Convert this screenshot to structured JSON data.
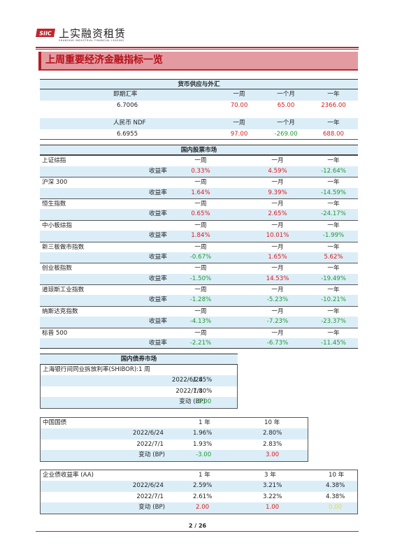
{
  "brand": {
    "name_cn": "上实融资租赁",
    "name_en": "SHANGHAI INDUSTRIAL FINANCIAL LEASING",
    "logo_text": "SIIC",
    "accent": "#c0262d"
  },
  "title": "上周重要经济金融指标一览",
  "fx": {
    "section": "货币供应与外汇",
    "periods": [
      "一周",
      "一个月",
      "一年"
    ],
    "rows": [
      {
        "name": "即期汇率",
        "value": "6.7006",
        "changes": [
          "70.00",
          "65.00",
          "2366.00"
        ]
      },
      {
        "name": "人民币 NDF",
        "value": "6.6955",
        "changes": [
          "97.00",
          "-269.00",
          "688.00"
        ]
      }
    ]
  },
  "stocks": {
    "section": "国内股票市场",
    "periods": [
      "一周",
      "一月",
      "一年"
    ],
    "yield_label": "收益率",
    "rows": [
      {
        "name": "上证综指",
        "values": [
          "0.33%",
          "4.59%",
          "-12.64%"
        ]
      },
      {
        "name": "沪深 300",
        "values": [
          "1.64%",
          "9.39%",
          "-14.59%"
        ]
      },
      {
        "name": "恒生指数",
        "values": [
          "0.65%",
          "2.65%",
          "-24.17%"
        ]
      },
      {
        "name": "中小板综指",
        "values": [
          "1.84%",
          "10.01%",
          "-1.99%"
        ]
      },
      {
        "name": "新三板做市指数",
        "values": [
          "-0.67%",
          "1.65%",
          "5.62%"
        ]
      },
      {
        "name": "创业板指数",
        "values": [
          "-1.50%",
          "14.53%",
          "-19.49%"
        ]
      },
      {
        "name": "道琼斯工业指数",
        "values": [
          "-1.28%",
          "-5.23%",
          "-10.21%"
        ]
      },
      {
        "name": "纳斯达克指数",
        "values": [
          "-4.13%",
          "-7.23%",
          "-23.37%"
        ]
      },
      {
        "name": "标普 500",
        "values": [
          "-2.21%",
          "-6.73%",
          "-11.45%"
        ]
      }
    ]
  },
  "bonds": {
    "section": "国内债券市场",
    "shibor": {
      "title": "上海银行间同业拆放利率(SHIBOR):1 周",
      "rows": [
        {
          "date": "2022/6/24",
          "value": "1.85%"
        },
        {
          "date": "2022/7/1",
          "value": "1.80%"
        }
      ],
      "change_label": "变动 (BP)",
      "change": "-5.00"
    },
    "govt": {
      "title": "中国国债",
      "periods": [
        "1 年",
        "10 年"
      ],
      "rows": [
        {
          "date": "2022/6/24",
          "values": [
            "1.96%",
            "2.80%"
          ]
        },
        {
          "date": "2022/7/1",
          "values": [
            "1.93%",
            "2.83%"
          ]
        }
      ],
      "change_label": "变动 (BP)",
      "changes": [
        "-3.00",
        "3.00"
      ]
    },
    "corp": {
      "title": "企业债收益率 (AA)",
      "periods": [
        "1 年",
        "3 年",
        "10 年"
      ],
      "rows": [
        {
          "date": "2022/6/24",
          "values": [
            "2.59%",
            "3.21%",
            "4.38%"
          ]
        },
        {
          "date": "2022/7/1",
          "values": [
            "2.61%",
            "3.22%",
            "4.38%"
          ]
        }
      ],
      "change_label": "变动 (BP)",
      "changes": [
        "2.00",
        "1.00",
        "0.00"
      ]
    }
  },
  "page": "2 / 26"
}
